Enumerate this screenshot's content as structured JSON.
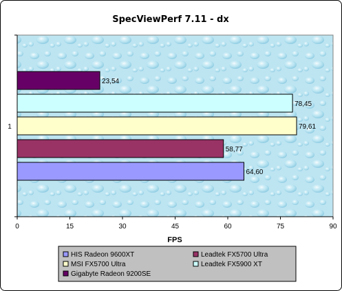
{
  "chart_data": {
    "type": "bar",
    "orientation": "horizontal",
    "title": "SpecViewPerf 7.11 - dx",
    "xlabel": "FPS",
    "ylabel": "",
    "categories": [
      "1"
    ],
    "xlim": [
      0,
      90
    ],
    "x_ticks": [
      "0",
      "15",
      "30",
      "45",
      "60",
      "75",
      "90"
    ],
    "grid": false,
    "legend_placement": "bottom",
    "series": [
      {
        "name": "HIS Radeon 9600XT",
        "values": [
          64.6
        ],
        "label": "64,60",
        "color": "#9999ff"
      },
      {
        "name": "Leadtek FX5700 Ultra",
        "values": [
          58.77
        ],
        "label": "58,77",
        "color": "#993366"
      },
      {
        "name": "MSI FX5700 Ultra",
        "values": [
          79.61
        ],
        "label": "79,61",
        "color": "#ffffcc"
      },
      {
        "name": "Leadtek FX5900 XT",
        "values": [
          78.45
        ],
        "label": "78,45",
        "color": "#ccffff"
      },
      {
        "name": "Gigabyte Radeon 9200SE",
        "values": [
          23.54
        ],
        "label": "23,54",
        "color": "#660066"
      }
    ],
    "colors": {
      "plot_background": "#bfe6f2",
      "legend_background": "#c0c0c0"
    }
  }
}
